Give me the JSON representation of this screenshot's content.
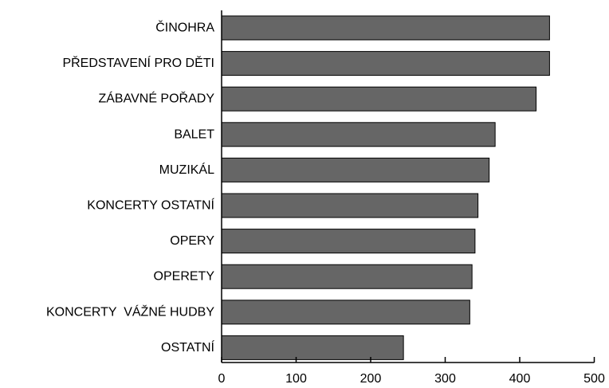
{
  "chart_data": {
    "type": "bar",
    "orientation": "horizontal",
    "categories": [
      "ČINOHRA",
      "PŘEDSTAVENÍ PRO DĚTI",
      "ZÁBAVNÉ POŘADY",
      "BALET",
      "MUZIKÁL",
      "KONCERTY OSTATNÍ",
      "OPERY",
      "OPERETY",
      "KONCERTY  VÁŽNÉ HUDBY",
      "OSTATNÍ"
    ],
    "values": [
      440,
      440,
      422,
      367,
      359,
      344,
      340,
      336,
      333,
      244
    ],
    "title": "",
    "xlabel": "",
    "ylabel": "",
    "xlim": [
      0,
      500
    ],
    "x_ticks": [
      0,
      100,
      200,
      300,
      400,
      500
    ],
    "bar_color": "#666666",
    "grid": false,
    "legend": "none"
  }
}
